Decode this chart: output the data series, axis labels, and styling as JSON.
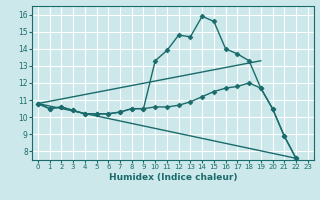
{
  "xlabel": "Humidex (Indice chaleur)",
  "xlim": [
    -0.5,
    23.5
  ],
  "ylim": [
    7.5,
    16.5
  ],
  "yticks": [
    8,
    9,
    10,
    11,
    12,
    13,
    14,
    15,
    16
  ],
  "xticks": [
    0,
    1,
    2,
    3,
    4,
    5,
    6,
    7,
    8,
    9,
    10,
    11,
    12,
    13,
    14,
    15,
    16,
    17,
    18,
    19,
    20,
    21,
    22,
    23
  ],
  "bg_color": "#cce8eb",
  "line_color": "#1a6b6b",
  "grid_color": "#ffffff",
  "lines": [
    {
      "x": [
        0,
        1,
        2,
        3,
        4,
        5,
        6,
        7,
        8,
        9,
        10,
        11,
        12,
        13,
        14,
        15,
        16,
        17,
        18,
        19,
        20,
        21,
        22
      ],
      "y": [
        10.8,
        10.5,
        10.6,
        10.4,
        10.2,
        10.2,
        10.2,
        10.3,
        10.5,
        10.5,
        13.3,
        13.9,
        14.8,
        14.7,
        15.9,
        15.6,
        14.0,
        13.7,
        13.3,
        11.7,
        10.5,
        8.9,
        7.6
      ],
      "marker": "D",
      "markersize": 2.5,
      "linewidth": 1.0
    },
    {
      "x": [
        0,
        19
      ],
      "y": [
        10.8,
        13.3
      ],
      "marker": null,
      "markersize": 0,
      "linewidth": 1.0
    },
    {
      "x": [
        0,
        1,
        2,
        3,
        4,
        5,
        6,
        7,
        8,
        9,
        10,
        11,
        12,
        13,
        14,
        15,
        16,
        17,
        18,
        19,
        20,
        21,
        22
      ],
      "y": [
        10.8,
        10.5,
        10.6,
        10.4,
        10.2,
        10.2,
        10.2,
        10.3,
        10.5,
        10.5,
        10.6,
        10.6,
        10.7,
        10.9,
        11.2,
        11.5,
        11.7,
        11.8,
        12.0,
        11.7,
        10.5,
        8.9,
        7.6
      ],
      "marker": "D",
      "markersize": 2.5,
      "linewidth": 1.0
    },
    {
      "x": [
        0,
        22
      ],
      "y": [
        10.8,
        7.6
      ],
      "marker": null,
      "markersize": 0,
      "linewidth": 1.0
    }
  ]
}
